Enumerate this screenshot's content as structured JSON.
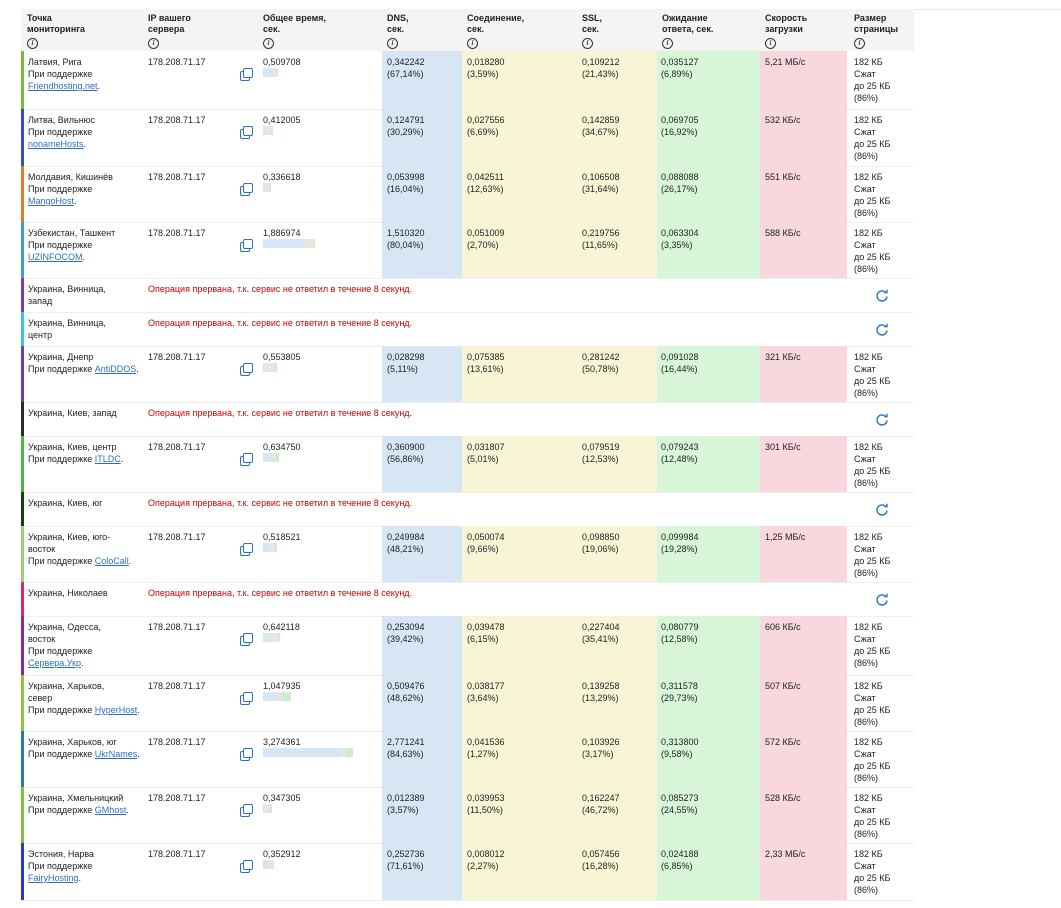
{
  "colors": {
    "dns_bg": "#d6e6f5",
    "conn_bg": "#f7f5d6",
    "wait_bg": "#d8f5d8",
    "speed_bg": "#f9d7de",
    "error_text": "#cc0000",
    "link": "#2a6fc0"
  },
  "headers": {
    "point": [
      "Точка",
      "мониторинга"
    ],
    "ip": [
      "IP вашего",
      "сервера"
    ],
    "total": [
      "Общее время,",
      "сек."
    ],
    "dns": [
      "DNS,",
      "сек."
    ],
    "conn": [
      "Соединение,",
      "сек."
    ],
    "ssl": [
      "SSL,",
      "сек."
    ],
    "wait": [
      "Ожидание",
      "ответа, сек."
    ],
    "speed": [
      "Скорость",
      "загрузки"
    ],
    "size": [
      "Размер",
      "страницы"
    ],
    "info_icon": "i"
  },
  "supported_by": "При поддержке",
  "rows": [
    {
      "loc": [
        "Латвия, Рига"
      ],
      "sponsor": "Friendhosting.net",
      "sponsor_inline": false,
      "ip": "178.208.71.17",
      "total": "0,509708",
      "dns": [
        "0,342242",
        "(67,14%)"
      ],
      "conn": [
        "0,018280",
        "(3,59%)"
      ],
      "ssl": [
        "0,109212",
        "(21,43%)"
      ],
      "wait": [
        "0,035127",
        "(6,89%)"
      ],
      "speed": "5,21 МБ/с",
      "size": [
        "182 КБ",
        "Сжат",
        "до 25 КБ",
        "(86%)"
      ],
      "bar_color": "#6fbf3a"
    },
    {
      "loc": [
        "Литва, Вильнюс"
      ],
      "sponsor": "nonameHosts",
      "sponsor_inline": false,
      "ip": "178.208.71.17",
      "total": "0,412005",
      "dns": [
        "0,124791",
        "(30,29%)"
      ],
      "conn": [
        "0,027556",
        "(6,69%)"
      ],
      "ssl": [
        "0,142859",
        "(34,67%)"
      ],
      "wait": [
        "0,069705",
        "(16,92%)"
      ],
      "speed": "532 КБ/с",
      "size": [
        "182 КБ",
        "Сжат",
        "до 25 КБ",
        "(86%)"
      ],
      "bar_color": "#3a4ab8"
    },
    {
      "loc": [
        "Молдавия, Кишинёв"
      ],
      "sponsor": "MangoHost",
      "sponsor_inline": false,
      "ip": "178.208.71.17",
      "total": "0,336618",
      "dns": [
        "0,053998",
        "(16,04%)"
      ],
      "conn": [
        "0,042511",
        "(12,63%)"
      ],
      "ssl": [
        "0,106508",
        "(31,64%)"
      ],
      "wait": [
        "0,088088",
        "(26,17%)"
      ],
      "speed": "551 КБ/с",
      "size": [
        "182 КБ",
        "Сжат",
        "до 25 КБ",
        "(86%)"
      ],
      "bar_color": "#e07b2a"
    },
    {
      "loc": [
        "Узбекистан, Ташкент"
      ],
      "sponsor": "UZINFOCOM",
      "sponsor_inline": false,
      "ip": "178.208.71.17",
      "total": "1,886974",
      "dns": [
        "1,510320",
        "(80,04%)"
      ],
      "conn": [
        "0,051009",
        "(2,70%)"
      ],
      "ssl": [
        "0,219756",
        "(11,65%)"
      ],
      "wait": [
        "0,063304",
        "(3,35%)"
      ],
      "speed": "588 КБ/с",
      "size": [
        "182 КБ",
        "Сжат",
        "до 25 КБ",
        "(86%)"
      ],
      "bar_color": "#3aa0c8"
    },
    {
      "loc": [
        "Украина, Винница,",
        "запад"
      ],
      "error": "Операция прервана, т.к. сервис не ответил в течение 8 секунд.",
      "bar_color": "#7a3ab8"
    },
    {
      "loc": [
        "Украина, Винница,",
        "центр"
      ],
      "error": "Операция прервана, т.к. сервис не ответил в течение 8 секунд.",
      "bar_color": "#3ac8d8"
    },
    {
      "loc": [
        "Украина, Днепр"
      ],
      "sponsor": "AntiDDOS",
      "sponsor_inline": true,
      "ip": "178.208.71.17",
      "total": "0,553805",
      "dns": [
        "0,028298",
        "(5,11%)"
      ],
      "conn": [
        "0,075385",
        "(13,61%)"
      ],
      "ssl": [
        "0,281242",
        "(50,78%)"
      ],
      "wait": [
        "0,091028",
        "(16,44%)"
      ],
      "speed": "321 КБ/с",
      "size": [
        "182 КБ",
        "Сжат",
        "до 25 КБ",
        "(86%)"
      ],
      "bar_color": "#6a3ab0"
    },
    {
      "loc": [
        "Украина, Киев, запад"
      ],
      "error": "Операция прервана, т.к. сервис не ответил в течение 8 секунд.",
      "bar_color": "#2a2a2a"
    },
    {
      "loc": [
        "Украина, Киев, центр"
      ],
      "sponsor": "ITLDC",
      "sponsor_inline": true,
      "ip": "178.208.71.17",
      "total": "0,634750",
      "dns": [
        "0,360900",
        "(56,86%)"
      ],
      "conn": [
        "0,031807",
        "(5,01%)"
      ],
      "ssl": [
        "0,079519",
        "(12,53%)"
      ],
      "wait": [
        "0,079243",
        "(12,48%)"
      ],
      "speed": "301 КБ/с",
      "size": [
        "182 КБ",
        "Сжат",
        "до 25 КБ",
        "(86%)"
      ],
      "bar_color": "#4ab83a"
    },
    {
      "loc": [
        "Украина, Киев, юг"
      ],
      "error": "Операция прервана, т.к. сервис не ответил в течение 8 секунд.",
      "bar_color": "#1a3a1a"
    },
    {
      "loc": [
        "Украина, Киев, юго-",
        "восток"
      ],
      "sponsor": "ColoCall",
      "sponsor_inline": true,
      "ip": "178.208.71.17",
      "total": "0,518521",
      "dns": [
        "0,249984",
        "(48,21%)"
      ],
      "conn": [
        "0,050074",
        "(9,66%)"
      ],
      "ssl": [
        "0,098850",
        "(19,06%)"
      ],
      "wait": [
        "0,099984",
        "(19,28%)"
      ],
      "speed": "1,25 МБ/с",
      "size": [
        "182 КБ",
        "Сжат",
        "до 25 КБ",
        "(86%)"
      ],
      "bar_color": "#9ad07a"
    },
    {
      "loc": [
        "Украина, Николаев"
      ],
      "error": "Операция прервана, т.к. сервис не ответил в течение 8 секунд.",
      "bar_color": "#d82a6a"
    },
    {
      "loc": [
        "Украина, Одесса,",
        "восток"
      ],
      "sponsor": "Сервера.Укр",
      "sponsor_inline": false,
      "ip": "178.208.71.17",
      "total": "0,642118",
      "dns": [
        "0,253094",
        "(39,42%)"
      ],
      "conn": [
        "0,039478",
        "(6,15%)"
      ],
      "ssl": [
        "0,227404",
        "(35,41%)"
      ],
      "wait": [
        "0,080779",
        "(12,58%)"
      ],
      "speed": "606 КБ/с",
      "size": [
        "182 КБ",
        "Сжат",
        "до 25 КБ",
        "(86%)"
      ],
      "bar_color": "#8a2a9a"
    },
    {
      "loc": [
        "Украина, Харьков,",
        "север"
      ],
      "sponsor": "HyperHost",
      "sponsor_inline": true,
      "ip": "178.208.71.17",
      "total": "1,047935",
      "dns": [
        "0,509476",
        "(48,62%)"
      ],
      "conn": [
        "0,038177",
        "(3,64%)"
      ],
      "ssl": [
        "0,139258",
        "(13,29%)"
      ],
      "wait": [
        "0,311578",
        "(29,73%)"
      ],
      "speed": "507 КБ/с",
      "size": [
        "182 КБ",
        "Сжат",
        "до 25 КБ",
        "(86%)"
      ],
      "bar_color": "#8ac83a"
    },
    {
      "loc": [
        "Украина, Харьков, юг"
      ],
      "sponsor": "UkrNames",
      "sponsor_inline": true,
      "ip": "178.208.71.17",
      "total": "3,274361",
      "dns": [
        "2,771241",
        "(84,63%)"
      ],
      "conn": [
        "0,041536",
        "(1,27%)"
      ],
      "ssl": [
        "0,103926",
        "(3,17%)"
      ],
      "wait": [
        "0,313800",
        "(9,58%)"
      ],
      "speed": "572 КБ/с",
      "size": [
        "182 КБ",
        "Сжат",
        "до 25 КБ",
        "(86%)"
      ],
      "bar_color": "#2a7ab0"
    },
    {
      "loc": [
        "Украина, Хмельницкий"
      ],
      "sponsor": "GMhost",
      "sponsor_inline": true,
      "ip": "178.208.71.17",
      "total": "0,347305",
      "dns": [
        "0,012389",
        "(3,57%)"
      ],
      "conn": [
        "0,039953",
        "(11,50%)"
      ],
      "ssl": [
        "0,162247",
        "(46,72%)"
      ],
      "wait": [
        "0,085273",
        "(24,55%)"
      ],
      "speed": "528 КБ/с",
      "size": [
        "182 КБ",
        "Сжат",
        "до 25 КБ",
        "(86%)"
      ],
      "bar_color": "#7ac83a"
    },
    {
      "loc": [
        "Эстония, Нарва"
      ],
      "sponsor": "FairyHosting",
      "sponsor_inline": false,
      "ip": "178.208.71.17",
      "total": "0,352912",
      "dns": [
        "0,252736",
        "(71,61%)"
      ],
      "conn": [
        "0,008012",
        "(2,27%)"
      ],
      "ssl": [
        "0,057456",
        "(16,28%)"
      ],
      "wait": [
        "0,024188",
        "(6,85%)"
      ],
      "speed": "2,33 МБ/с",
      "size": [
        "182 КБ",
        "Сжат",
        "до 25 КБ",
        "(86%)"
      ],
      "bar_color": "#2a3ab8"
    }
  ]
}
